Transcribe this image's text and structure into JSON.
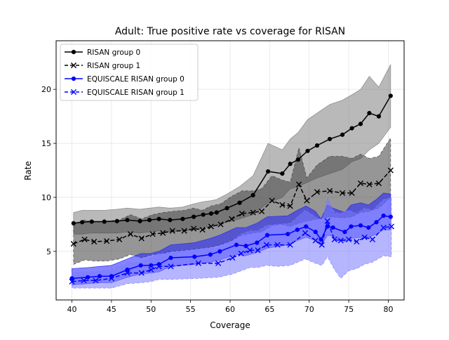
{
  "chart_data": {
    "type": "line",
    "title": "Adult: True positive rate vs coverage for RISAN",
    "xlabel": "Coverage",
    "ylabel": "Rate",
    "xlim": [
      38,
      82
    ],
    "ylim": [
      0.5,
      24.5
    ],
    "xticks": [
      40,
      45,
      50,
      55,
      60,
      65,
      70,
      75,
      80
    ],
    "yticks": [
      5,
      10,
      15,
      20
    ],
    "grid": true,
    "legend_position": "top-left",
    "series": [
      {
        "name": "RISAN group 0",
        "color": "#000000",
        "marker": "dot",
        "linestyle": "solid",
        "band_color": "#808080",
        "x": [
          40.2,
          41.3,
          42.5,
          44.1,
          45.7,
          47.0,
          48.6,
          49.8,
          51.0,
          52.4,
          54.0,
          55.4,
          56.6,
          57.6,
          58.3,
          59.6,
          61.2,
          62.9,
          64.8,
          66.6,
          67.6,
          68.6,
          69.8,
          71.0,
          72.6,
          74.2,
          75.4,
          76.5,
          77.6,
          78.8,
          80.3
        ],
        "values": [
          7.6,
          7.7,
          7.75,
          7.75,
          7.8,
          7.9,
          7.8,
          7.9,
          8.0,
          7.9,
          8.0,
          8.2,
          8.4,
          8.5,
          8.6,
          9.0,
          9.5,
          10.2,
          12.4,
          12.2,
          13.1,
          13.5,
          14.3,
          14.8,
          15.4,
          15.8,
          16.4,
          16.8,
          17.8,
          17.5,
          19.4
        ],
        "lower": [
          6.6,
          6.6,
          6.7,
          6.7,
          6.7,
          6.8,
          6.7,
          6.8,
          6.9,
          6.8,
          6.9,
          7.0,
          7.2,
          7.3,
          7.4,
          7.7,
          8.0,
          8.4,
          9.5,
          10.0,
          10.8,
          11.0,
          11.4,
          11.8,
          12.2,
          12.6,
          13.3,
          13.6,
          14.4,
          15.0,
          16.5
        ],
        "upper": [
          8.6,
          8.8,
          8.8,
          8.8,
          8.9,
          9.0,
          8.9,
          9.0,
          9.1,
          9.0,
          9.1,
          9.4,
          9.6,
          9.7,
          9.8,
          10.3,
          11.0,
          12.0,
          15.0,
          14.4,
          15.4,
          16.0,
          17.2,
          17.8,
          18.6,
          19.0,
          19.5,
          20.0,
          21.2,
          20.2,
          22.3
        ]
      },
      {
        "name": "RISAN group 1",
        "color": "#000000",
        "marker": "x",
        "linestyle": "dashed",
        "band_color": "#404040",
        "x": [
          40.2,
          41.6,
          42.8,
          44.4,
          46.0,
          47.4,
          48.8,
          50.2,
          51.5,
          52.7,
          54.2,
          55.4,
          56.5,
          57.6,
          58.8,
          60.2,
          61.5,
          62.9,
          64.0,
          65.3,
          66.6,
          67.6,
          68.7,
          69.7,
          71.0,
          72.6,
          74.2,
          75.4,
          76.5,
          77.6,
          78.8,
          80.3
        ],
        "values": [
          5.7,
          6.1,
          5.9,
          5.95,
          6.1,
          6.6,
          6.2,
          6.6,
          6.7,
          6.9,
          6.9,
          7.1,
          7.0,
          7.3,
          7.5,
          8.0,
          8.5,
          8.6,
          8.7,
          9.7,
          9.3,
          9.2,
          11.2,
          9.7,
          10.5,
          10.6,
          10.4,
          10.4,
          11.3,
          11.2,
          11.3,
          12.5
        ],
        "lower": [
          3.8,
          4.2,
          4.1,
          4.1,
          4.3,
          4.7,
          4.4,
          4.7,
          4.8,
          5.0,
          5.1,
          5.2,
          5.3,
          5.4,
          5.6,
          6.0,
          6.5,
          6.7,
          6.8,
          7.4,
          7.5,
          7.3,
          7.6,
          7.8,
          8.0,
          8.2,
          8.1,
          8.2,
          8.6,
          8.7,
          9.0,
          10.0
        ],
        "upper": [
          7.5,
          7.9,
          7.7,
          7.8,
          7.9,
          8.4,
          8.0,
          8.4,
          8.6,
          8.7,
          8.8,
          9.0,
          8.8,
          9.2,
          9.4,
          10.1,
          10.6,
          10.6,
          10.8,
          12.0,
          11.6,
          11.4,
          14.6,
          11.8,
          13.0,
          13.8,
          13.8,
          13.6,
          14.0,
          13.6,
          13.8,
          15.5
        ]
      },
      {
        "name": "EQUISCALE RISAN group 0",
        "color": "#0000ff",
        "marker": "dot",
        "linestyle": "solid",
        "band_color": "#2020ff",
        "x": [
          40.0,
          42.0,
          43.5,
          45.0,
          47.0,
          48.7,
          50.0,
          51.0,
          52.5,
          55.5,
          57.5,
          58.7,
          60.8,
          62.0,
          63.4,
          64.7,
          67.3,
          68.5,
          69.6,
          70.8,
          71.5,
          72.3,
          73.0,
          74.5,
          75.3,
          76.5,
          77.5,
          78.5,
          79.4,
          80.3
        ],
        "values": [
          2.5,
          2.6,
          2.7,
          2.7,
          3.3,
          3.7,
          3.7,
          3.8,
          4.4,
          4.5,
          4.7,
          5.0,
          5.6,
          5.5,
          5.8,
          6.5,
          6.6,
          7.0,
          7.3,
          6.8,
          6.1,
          7.3,
          7.2,
          6.8,
          7.3,
          7.4,
          7.2,
          7.7,
          8.3,
          8.2
        ],
        "lower": [
          1.9,
          2.0,
          2.1,
          2.1,
          2.6,
          2.9,
          3.0,
          3.1,
          3.6,
          3.8,
          4.0,
          4.2,
          4.7,
          4.6,
          4.9,
          5.3,
          5.6,
          6.0,
          6.3,
          6.0,
          5.5,
          6.5,
          6.4,
          5.9,
          6.2,
          6.3,
          6.3,
          6.6,
          7.0,
          7.0
        ],
        "upper": [
          3.4,
          3.5,
          3.6,
          3.7,
          4.3,
          4.8,
          4.8,
          5.0,
          5.6,
          5.8,
          6.2,
          6.5,
          7.2,
          7.2,
          7.6,
          8.2,
          8.3,
          8.8,
          9.2,
          8.7,
          8.0,
          9.3,
          9.0,
          8.6,
          9.3,
          9.5,
          9.3,
          9.8,
          10.4,
          10.3
        ]
      },
      {
        "name": "EQUISCALE RISAN group 1",
        "color": "#0000ff",
        "marker": "x",
        "linestyle": "dashed",
        "band_color": "#7a7aff",
        "x": [
          40.0,
          41.5,
          43.0,
          45.0,
          47.0,
          48.8,
          50.0,
          51.0,
          52.5,
          56.0,
          58.5,
          60.3,
          61.4,
          62.5,
          63.5,
          64.6,
          66.0,
          67.6,
          69.5,
          70.8,
          71.6,
          72.3,
          73.2,
          74.0,
          75.0,
          76.0,
          77.0,
          78.0,
          79.4,
          80.4
        ],
        "values": [
          2.2,
          2.3,
          2.3,
          2.5,
          3.0,
          3.0,
          3.3,
          3.6,
          3.6,
          3.9,
          3.9,
          4.4,
          4.8,
          5.1,
          5.1,
          5.6,
          5.6,
          5.6,
          6.7,
          6.0,
          5.6,
          7.8,
          6.1,
          6.0,
          6.1,
          5.9,
          6.3,
          6.1,
          7.2,
          7.3
        ],
        "lower": [
          1.6,
          1.6,
          1.6,
          1.6,
          2.0,
          2.1,
          2.2,
          2.4,
          2.4,
          2.5,
          2.6,
          2.9,
          3.2,
          3.5,
          3.5,
          3.7,
          3.6,
          3.7,
          4.3,
          3.9,
          3.7,
          4.5,
          3.3,
          2.5,
          3.2,
          3.4,
          3.8,
          4.0,
          4.6,
          4.5
        ],
        "upper": [
          3.0,
          3.1,
          3.1,
          3.3,
          3.9,
          4.0,
          4.4,
          4.8,
          4.8,
          5.2,
          5.3,
          6.0,
          6.6,
          6.9,
          6.9,
          7.4,
          7.5,
          7.6,
          8.8,
          8.2,
          7.6,
          10.0,
          8.6,
          8.5,
          8.8,
          8.5,
          9.0,
          8.8,
          9.8,
          10.0
        ]
      }
    ]
  }
}
